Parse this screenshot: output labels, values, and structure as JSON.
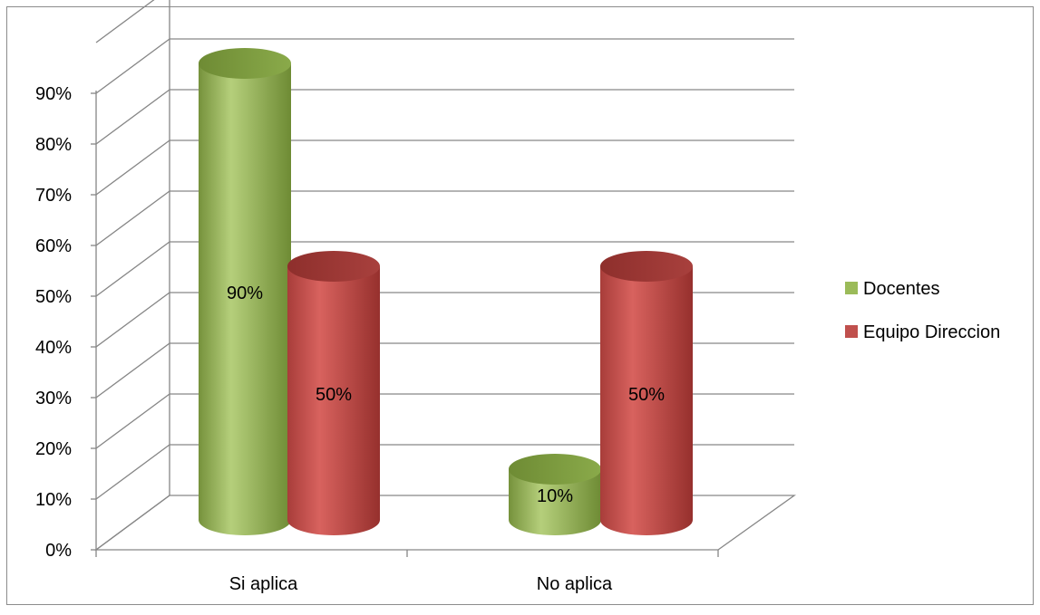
{
  "chart_data": {
    "type": "bar",
    "title": "",
    "xlabel": "",
    "ylabel": "",
    "categories": [
      "Si aplica",
      "No aplica"
    ],
    "series": [
      {
        "name": "Docentes",
        "values": [
          90,
          10
        ],
        "labels": [
          "90%",
          "10%"
        ],
        "color": "#9BBB59"
      },
      {
        "name": "Equipo Direccion",
        "values": [
          50,
          50
        ],
        "labels": [
          "50%",
          "50%"
        ],
        "color": "#C0504D"
      }
    ],
    "ylim": [
      0,
      90
    ],
    "yticks": [
      "0%",
      "10%",
      "20%",
      "30%",
      "40%",
      "50%",
      "60%",
      "70%",
      "80%",
      "90%"
    ],
    "grid": true,
    "legend_position": "right",
    "style": "3d-cylinder"
  }
}
